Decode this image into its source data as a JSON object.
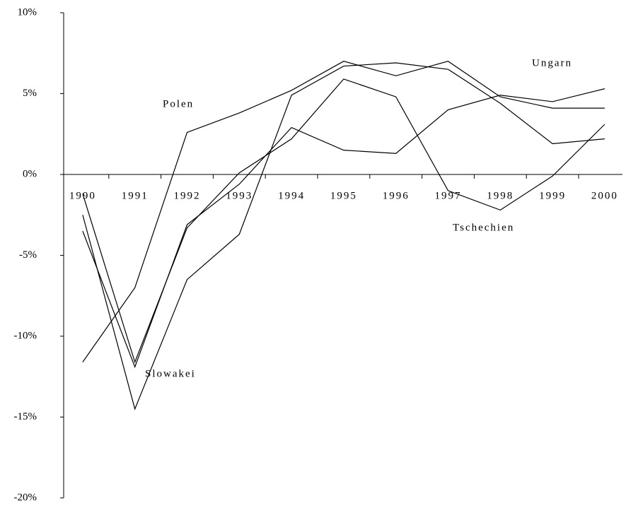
{
  "chart_data": {
    "type": "line",
    "categories": [
      "1990",
      "1991",
      "1992",
      "1993",
      "1994",
      "1995",
      "1996",
      "1997",
      "1998",
      "1999",
      "2000"
    ],
    "series": [
      {
        "name": "Polen",
        "color": "#000000",
        "values": [
          -11.6,
          -7.0,
          2.6,
          3.8,
          5.2,
          7.0,
          6.1,
          7.0,
          4.8,
          4.1,
          4.1
        ]
      },
      {
        "name": "Ungarn",
        "color": "#000000",
        "values": [
          -3.5,
          -11.9,
          -3.1,
          -0.6,
          2.9,
          1.5,
          1.3,
          4.0,
          4.9,
          4.5,
          5.3
        ]
      },
      {
        "name": "Tschechien",
        "color": "#000000",
        "values": [
          -1.2,
          -11.6,
          -3.3,
          0.1,
          2.2,
          5.9,
          4.8,
          -1.0,
          -2.2,
          -0.1,
          3.1
        ]
      },
      {
        "name": "Slowakei",
        "color": "#000000",
        "values": [
          -2.5,
          -14.5,
          -6.5,
          -3.7,
          4.9,
          6.7,
          6.9,
          6.5,
          4.4,
          1.9,
          2.2
        ]
      }
    ],
    "ylim": [
      -20,
      10
    ],
    "yticks": [
      {
        "value": -20,
        "label": "-20%"
      },
      {
        "value": -15,
        "label": "-15%"
      },
      {
        "value": -10,
        "label": "-10%"
      },
      {
        "value": -5,
        "label": "-5%"
      },
      {
        "value": 0,
        "label": "0%"
      },
      {
        "value": 5,
        "label": "5%"
      },
      {
        "value": 10,
        "label": "10%"
      }
    ]
  }
}
